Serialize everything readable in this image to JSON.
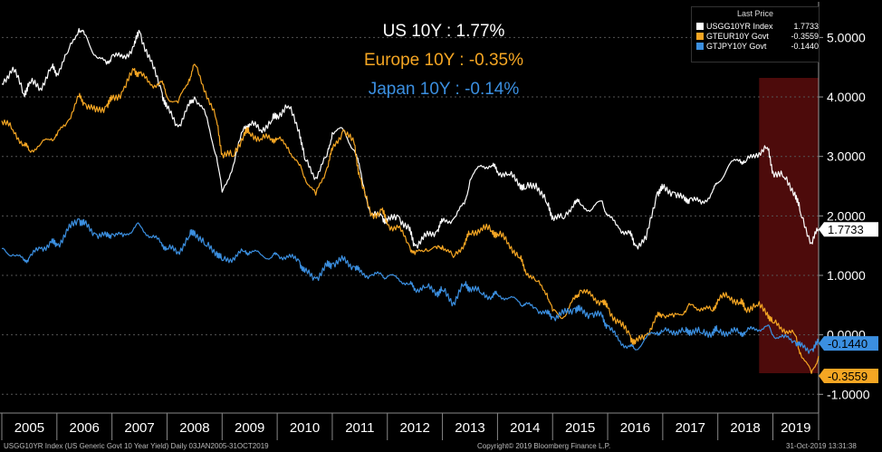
{
  "header": {
    "us_label": "US 10Y : 1.77%",
    "eu_label": "Europe 10Y : -0.35%",
    "jp_label": "Japan 10Y : -0.14%"
  },
  "legend": {
    "title": "Last Price",
    "items": [
      {
        "name": "USGG10YR Index",
        "value": "1.7733",
        "color": "#ffffff"
      },
      {
        "name": "GTEUR10Y Govt",
        "value": "-0.3559",
        "color": "#f5a623"
      },
      {
        "name": "GTJPY10Y Govt",
        "value": "-0.1440",
        "color": "#3b8fe0"
      }
    ]
  },
  "footer": {
    "left": "USGG10YR Index (US Generic Govt 10 Year Yield)  Daily 03JAN2005-31OCT2019",
    "center": "Copyright© 2019 Bloomberg Finance L.P.",
    "right": "31-Oct-2019 13:31:38"
  },
  "chart_data": {
    "type": "line",
    "title": "US 10Y : 1.77%  Europe 10Y : -0.35%  Japan 10Y : -0.14%",
    "xlabel": "",
    "ylabel": "",
    "xlim": [
      2005.0,
      2019.83
    ],
    "ylim": [
      -1.3,
      5.6
    ],
    "yticks": [
      -1,
      0,
      1,
      2,
      3,
      4,
      5
    ],
    "ytick_labels": [
      "-1.0000",
      "0.0000",
      "1.0000",
      "2.0000",
      "3.0000",
      "4.0000",
      "5.0000"
    ],
    "xtick_labels": [
      "2005",
      "2006",
      "2007",
      "2008",
      "2009",
      "2010",
      "2011",
      "2012",
      "2013",
      "2014",
      "2015",
      "2016",
      "2017",
      "2018",
      "2019"
    ],
    "highlight": {
      "from": 2018.75,
      "to": 2019.83,
      "color": "#5a0d0d"
    },
    "last_value_labels": [
      {
        "series": "USGG10YR Index",
        "text": "1.7733",
        "y": 1.7733,
        "bg": "#ffffff",
        "fg": "#000000"
      },
      {
        "series": "GTJPY10Y Govt",
        "text": "-0.1440",
        "y": -0.144,
        "bg": "#3b8fe0",
        "fg": "#000000"
      },
      {
        "series": "GTEUR10Y Govt",
        "text": "-0.3559",
        "y": -0.3559,
        "bg": "#f5a623",
        "fg": "#000000"
      }
    ],
    "series": [
      {
        "name": "USGG10YR Index",
        "color": "#ffffff",
        "x": [
          2005.0,
          2005.2,
          2005.4,
          2005.5,
          2005.7,
          2005.9,
          2006.0,
          2006.2,
          2006.4,
          2006.5,
          2006.7,
          2006.9,
          2007.0,
          2007.2,
          2007.4,
          2007.5,
          2007.7,
          2007.9,
          2008.0,
          2008.2,
          2008.4,
          2008.5,
          2008.7,
          2008.9,
          2009.0,
          2009.2,
          2009.4,
          2009.5,
          2009.7,
          2009.9,
          2010.0,
          2010.2,
          2010.4,
          2010.5,
          2010.7,
          2010.9,
          2011.0,
          2011.2,
          2011.4,
          2011.5,
          2011.7,
          2011.9,
          2012.0,
          2012.2,
          2012.4,
          2012.5,
          2012.7,
          2012.9,
          2013.0,
          2013.2,
          2013.4,
          2013.5,
          2013.7,
          2013.9,
          2014.0,
          2014.2,
          2014.4,
          2014.5,
          2014.7,
          2014.9,
          2015.0,
          2015.2,
          2015.4,
          2015.5,
          2015.7,
          2015.9,
          2016.0,
          2016.2,
          2016.4,
          2016.5,
          2016.7,
          2016.9,
          2017.0,
          2017.2,
          2017.4,
          2017.5,
          2017.7,
          2017.9,
          2018.0,
          2018.2,
          2018.4,
          2018.5,
          2018.7,
          2018.9,
          2019.0,
          2019.2,
          2019.4,
          2019.5,
          2019.7,
          2019.83
        ],
        "y": [
          4.22,
          4.5,
          4.05,
          4.25,
          4.15,
          4.5,
          4.4,
          4.75,
          5.15,
          5.05,
          4.7,
          4.55,
          4.7,
          4.65,
          4.85,
          5.1,
          4.6,
          4.1,
          3.8,
          3.5,
          3.85,
          4.0,
          3.7,
          3.0,
          2.4,
          2.85,
          3.5,
          3.55,
          3.45,
          3.6,
          3.7,
          3.85,
          3.45,
          2.95,
          2.65,
          3.0,
          3.4,
          3.45,
          3.1,
          2.8,
          2.0,
          2.0,
          1.9,
          2.0,
          1.75,
          1.5,
          1.65,
          1.75,
          1.9,
          1.95,
          2.2,
          2.6,
          2.85,
          2.85,
          2.75,
          2.7,
          2.55,
          2.45,
          2.55,
          2.2,
          2.0,
          1.95,
          2.25,
          2.2,
          2.1,
          2.25,
          2.0,
          1.8,
          1.7,
          1.5,
          1.6,
          2.4,
          2.45,
          2.4,
          2.25,
          2.3,
          2.2,
          2.4,
          2.55,
          2.85,
          2.95,
          2.9,
          3.05,
          3.15,
          2.75,
          2.65,
          2.4,
          2.05,
          1.55,
          1.7733
        ]
      },
      {
        "name": "GTEUR10Y Govt",
        "color": "#f5a623",
        "x": [
          2005.0,
          2005.2,
          2005.4,
          2005.5,
          2005.7,
          2005.9,
          2006.0,
          2006.2,
          2006.4,
          2006.5,
          2006.7,
          2006.9,
          2007.0,
          2007.2,
          2007.4,
          2007.5,
          2007.7,
          2007.9,
          2008.0,
          2008.2,
          2008.4,
          2008.5,
          2008.7,
          2008.9,
          2009.0,
          2009.2,
          2009.4,
          2009.5,
          2009.7,
          2009.9,
          2010.0,
          2010.2,
          2010.4,
          2010.5,
          2010.7,
          2010.9,
          2011.0,
          2011.2,
          2011.4,
          2011.5,
          2011.7,
          2011.9,
          2012.0,
          2012.2,
          2012.4,
          2012.5,
          2012.7,
          2012.9,
          2013.0,
          2013.2,
          2013.4,
          2013.5,
          2013.7,
          2013.9,
          2014.0,
          2014.2,
          2014.4,
          2014.5,
          2014.7,
          2014.9,
          2015.0,
          2015.2,
          2015.4,
          2015.5,
          2015.7,
          2015.9,
          2016.0,
          2016.2,
          2016.4,
          2016.5,
          2016.7,
          2016.9,
          2017.0,
          2017.2,
          2017.4,
          2017.5,
          2017.7,
          2017.9,
          2018.0,
          2018.2,
          2018.4,
          2018.5,
          2018.7,
          2018.9,
          2019.0,
          2019.2,
          2019.4,
          2019.5,
          2019.7,
          2019.83
        ],
        "y": [
          3.6,
          3.45,
          3.2,
          3.1,
          3.2,
          3.3,
          3.35,
          3.6,
          4.0,
          3.9,
          3.75,
          3.85,
          3.95,
          4.1,
          4.45,
          4.4,
          4.2,
          4.25,
          4.0,
          3.9,
          4.3,
          4.55,
          4.1,
          3.6,
          3.05,
          3.0,
          3.4,
          3.4,
          3.3,
          3.3,
          3.3,
          3.15,
          2.85,
          2.65,
          2.35,
          2.8,
          3.1,
          3.45,
          3.2,
          2.65,
          2.0,
          2.1,
          1.85,
          1.8,
          1.5,
          1.35,
          1.45,
          1.45,
          1.5,
          1.3,
          1.55,
          1.7,
          1.8,
          1.75,
          1.7,
          1.55,
          1.3,
          1.1,
          0.9,
          0.7,
          0.4,
          0.3,
          0.6,
          0.75,
          0.65,
          0.55,
          0.45,
          0.2,
          0.0,
          -0.15,
          0.0,
          0.3,
          0.35,
          0.3,
          0.4,
          0.5,
          0.45,
          0.4,
          0.6,
          0.65,
          0.55,
          0.45,
          0.5,
          0.38,
          0.2,
          0.1,
          0.0,
          -0.3,
          -0.65,
          -0.3559
        ]
      },
      {
        "name": "GTJPY10Y Govt",
        "color": "#3b8fe0",
        "x": [
          2005.0,
          2005.2,
          2005.4,
          2005.5,
          2005.7,
          2005.9,
          2006.0,
          2006.2,
          2006.4,
          2006.5,
          2006.7,
          2006.9,
          2007.0,
          2007.2,
          2007.4,
          2007.5,
          2007.7,
          2007.9,
          2008.0,
          2008.2,
          2008.4,
          2008.5,
          2008.7,
          2008.9,
          2009.0,
          2009.2,
          2009.4,
          2009.5,
          2009.7,
          2009.9,
          2010.0,
          2010.2,
          2010.4,
          2010.5,
          2010.7,
          2010.9,
          2011.0,
          2011.2,
          2011.4,
          2011.5,
          2011.7,
          2011.9,
          2012.0,
          2012.2,
          2012.4,
          2012.5,
          2012.7,
          2012.9,
          2013.0,
          2013.2,
          2013.4,
          2013.5,
          2013.7,
          2013.9,
          2014.0,
          2014.2,
          2014.4,
          2014.5,
          2014.7,
          2014.9,
          2015.0,
          2015.2,
          2015.4,
          2015.5,
          2015.7,
          2015.9,
          2016.0,
          2016.2,
          2016.4,
          2016.5,
          2016.7,
          2016.9,
          2017.0,
          2017.2,
          2017.4,
          2017.5,
          2017.7,
          2017.9,
          2018.0,
          2018.2,
          2018.4,
          2018.5,
          2018.7,
          2018.9,
          2019.0,
          2019.2,
          2019.4,
          2019.5,
          2019.7,
          2019.83
        ],
        "y": [
          1.45,
          1.35,
          1.25,
          1.3,
          1.45,
          1.55,
          1.5,
          1.75,
          1.95,
          1.85,
          1.7,
          1.65,
          1.7,
          1.65,
          1.8,
          1.85,
          1.65,
          1.55,
          1.45,
          1.4,
          1.65,
          1.75,
          1.5,
          1.4,
          1.25,
          1.3,
          1.4,
          1.4,
          1.35,
          1.3,
          1.35,
          1.3,
          1.25,
          1.05,
          0.95,
          1.15,
          1.2,
          1.25,
          1.15,
          1.05,
          1.0,
          1.0,
          0.98,
          0.95,
          0.85,
          0.78,
          0.8,
          0.72,
          0.75,
          0.55,
          0.85,
          0.8,
          0.7,
          0.65,
          0.68,
          0.62,
          0.55,
          0.5,
          0.45,
          0.35,
          0.3,
          0.35,
          0.45,
          0.4,
          0.35,
          0.3,
          0.15,
          -0.1,
          -0.2,
          -0.25,
          -0.05,
          0.05,
          0.05,
          0.07,
          0.05,
          0.08,
          0.03,
          0.05,
          0.07,
          0.05,
          0.04,
          0.05,
          0.1,
          0.15,
          0.0,
          -0.05,
          -0.1,
          -0.2,
          -0.25,
          -0.144
        ]
      }
    ]
  }
}
